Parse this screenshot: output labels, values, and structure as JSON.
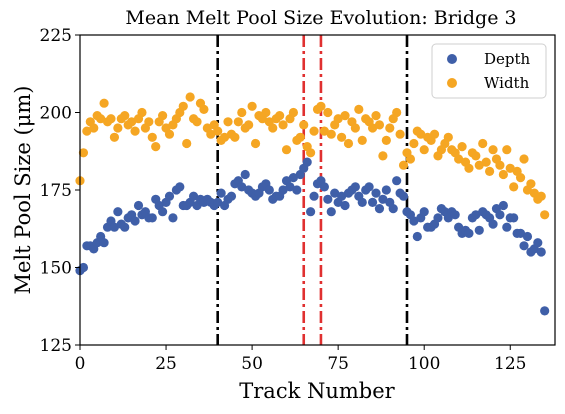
{
  "chart_data": {
    "type": "scatter",
    "title": "Mean Melt Pool Size Evolution: Bridge 3",
    "xlabel": "Track Number",
    "ylabel": "Melt Pool Size (μm)",
    "xlim": [
      0,
      138
    ],
    "ylim": [
      125,
      225
    ],
    "xticks": [
      0,
      25,
      50,
      75,
      100,
      125
    ],
    "yticks": [
      125,
      150,
      175,
      200,
      225
    ],
    "grid": false,
    "legend_position": "top-right",
    "vertical_lines": [
      {
        "x": 40,
        "style": "dash-dot",
        "color": "#000000"
      },
      {
        "x": 65,
        "style": "dash-dot",
        "color": "#e03030"
      },
      {
        "x": 70,
        "style": "dash-dot",
        "color": "#e03030"
      },
      {
        "x": 95,
        "style": "dash-dot",
        "color": "#000000"
      }
    ],
    "series": [
      {
        "name": "Depth",
        "color": "#3f5fa8",
        "x": [
          0,
          1,
          2,
          3,
          4,
          5,
          6,
          7,
          8,
          9,
          10,
          11,
          12,
          13,
          14,
          15,
          16,
          17,
          18,
          19,
          20,
          21,
          22,
          23,
          24,
          25,
          26,
          27,
          28,
          29,
          30,
          31,
          32,
          33,
          34,
          35,
          36,
          37,
          38,
          39,
          40,
          41,
          42,
          43,
          44,
          45,
          46,
          47,
          48,
          49,
          50,
          51,
          52,
          53,
          54,
          55,
          56,
          57,
          58,
          59,
          60,
          61,
          62,
          63,
          64,
          65,
          66,
          67,
          68,
          69,
          70,
          71,
          72,
          73,
          74,
          75,
          76,
          77,
          78,
          79,
          80,
          81,
          82,
          83,
          84,
          85,
          86,
          87,
          88,
          89,
          90,
          91,
          92,
          93,
          94,
          95,
          96,
          97,
          98,
          99,
          100,
          101,
          102,
          103,
          104,
          105,
          106,
          107,
          108,
          109,
          110,
          111,
          112,
          113,
          114,
          115,
          116,
          117,
          118,
          119,
          120,
          121,
          122,
          123,
          124,
          125,
          126,
          127,
          128,
          129,
          130,
          131,
          132,
          133,
          134,
          135
        ],
        "y": [
          149,
          150,
          157,
          157,
          156,
          158,
          160,
          158,
          163,
          165,
          163,
          168,
          164,
          163,
          166,
          167,
          165,
          170,
          167,
          168,
          166,
          166,
          172,
          170,
          168,
          171,
          173,
          166,
          175,
          176,
          170,
          170,
          171,
          173,
          170,
          172,
          171,
          172,
          171,
          170,
          171,
          174,
          170,
          172,
          173,
          177,
          178,
          176,
          180,
          175,
          174,
          173,
          174,
          176,
          177,
          175,
          172,
          173,
          173,
          175,
          178,
          176,
          179,
          175,
          180,
          182,
          184,
          168,
          173,
          177,
          178,
          176,
          172,
          168,
          174,
          171,
          173,
          170,
          174,
          175,
          176,
          173,
          171,
          175,
          176,
          171,
          174,
          169,
          172,
          175,
          171,
          169,
          178,
          174,
          173,
          168,
          167,
          165,
          160,
          166,
          168,
          163,
          163,
          164,
          166,
          169,
          168,
          166,
          168,
          167,
          163,
          161,
          162,
          161,
          166,
          167,
          162,
          168,
          167,
          166,
          164,
          169,
          167,
          170,
          163,
          166,
          166,
          161,
          161,
          157,
          160,
          155,
          156,
          158,
          155,
          136
        ]
      },
      {
        "name": "Width",
        "color": "#f5a623",
        "x": [
          0,
          1,
          2,
          3,
          4,
          5,
          6,
          7,
          8,
          9,
          10,
          11,
          12,
          13,
          14,
          15,
          16,
          17,
          18,
          19,
          20,
          21,
          22,
          23,
          24,
          25,
          26,
          27,
          28,
          29,
          30,
          31,
          32,
          33,
          34,
          35,
          36,
          37,
          38,
          39,
          40,
          41,
          42,
          43,
          44,
          45,
          46,
          47,
          48,
          49,
          50,
          51,
          52,
          53,
          54,
          55,
          56,
          57,
          58,
          59,
          60,
          61,
          62,
          63,
          64,
          65,
          66,
          67,
          68,
          69,
          70,
          71,
          72,
          73,
          74,
          75,
          76,
          77,
          78,
          79,
          80,
          81,
          82,
          83,
          84,
          85,
          86,
          87,
          88,
          89,
          90,
          91,
          92,
          93,
          94,
          95,
          96,
          97,
          98,
          99,
          100,
          101,
          102,
          103,
          104,
          105,
          106,
          107,
          108,
          109,
          110,
          111,
          112,
          113,
          114,
          115,
          116,
          117,
          118,
          119,
          120,
          121,
          122,
          123,
          124,
          125,
          126,
          127,
          128,
          129,
          130,
          131,
          132,
          133,
          134,
          135
        ],
        "y": [
          178,
          187,
          194,
          197,
          195,
          199,
          198,
          203,
          197,
          198,
          192,
          195,
          198,
          199,
          196,
          197,
          194,
          198,
          200,
          195,
          197,
          192,
          189,
          197,
          199,
          195,
          193,
          196,
          198,
          200,
          202,
          190,
          205,
          198,
          197,
          203,
          201,
          195,
          193,
          196,
          194,
          191,
          192,
          197,
          193,
          192,
          197,
          200,
          195,
          196,
          202,
          190,
          199,
          198,
          200,
          197,
          195,
          198,
          199,
          196,
          188,
          198,
          200,
          191,
          192,
          196,
          189,
          187,
          194,
          201,
          202,
          194,
          200,
          193,
          196,
          198,
          192,
          199,
          190,
          197,
          195,
          201,
          191,
          198,
          197,
          195,
          199,
          196,
          186,
          191,
          195,
          198,
          200,
          193,
          183,
          187,
          185,
          190,
          194,
          193,
          188,
          192,
          191,
          193,
          186,
          188,
          190,
          192,
          188,
          187,
          185,
          189,
          184,
          182,
          187,
          186,
          183,
          190,
          184,
          181,
          188,
          185,
          183,
          180,
          188,
          182,
          176,
          181,
          179,
          185,
          175,
          177,
          174,
          172,
          173,
          167
        ]
      }
    ]
  }
}
